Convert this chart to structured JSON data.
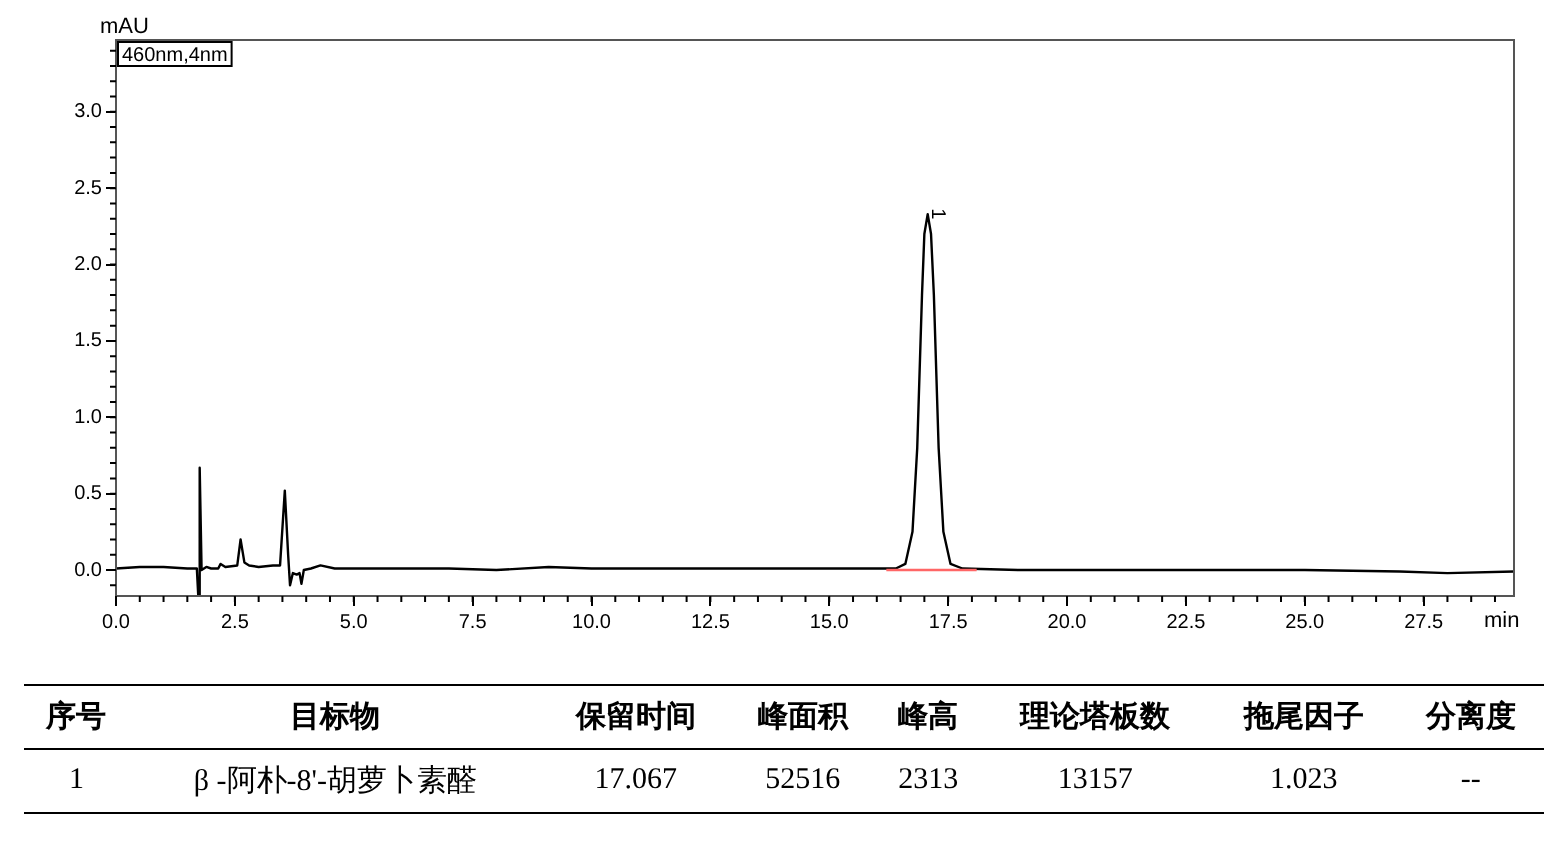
{
  "chart_data": {
    "type": "line",
    "xlabel": "min",
    "ylabel": "mAU",
    "xlim": [
      0,
      29.4
    ],
    "ylim": [
      -0.17,
      3.47
    ],
    "xticks": [
      {
        "value": 0,
        "label": "0.0"
      },
      {
        "value": 2.5,
        "label": "2.5"
      },
      {
        "value": 5,
        "label": "5.0"
      },
      {
        "value": 7.5,
        "label": "7.5"
      },
      {
        "value": 10,
        "label": "10.0"
      },
      {
        "value": 12.5,
        "label": "12.5"
      },
      {
        "value": 15,
        "label": "15.0"
      },
      {
        "value": 17.5,
        "label": "17.5"
      },
      {
        "value": 20,
        "label": "20.0"
      },
      {
        "value": 22.5,
        "label": "22.5"
      },
      {
        "value": 25,
        "label": "25.0"
      },
      {
        "value": 27.5,
        "label": "27.5"
      }
    ],
    "yticks": [
      {
        "value": 0,
        "label": "0.0"
      },
      {
        "value": 0.5,
        "label": "0.5"
      },
      {
        "value": 1,
        "label": "1.0"
      },
      {
        "value": 1.5,
        "label": "1.5"
      },
      {
        "value": 2,
        "label": "2.0"
      },
      {
        "value": 2.5,
        "label": "2.5"
      },
      {
        "value": 3,
        "label": "3.0"
      }
    ],
    "grid": false,
    "legend": false,
    "marker": "none",
    "line_style": "solid",
    "series": [
      {
        "color": "#000000",
        "x": [
          0,
          0.5,
          1.0,
          1.5,
          1.7,
          1.73,
          1.76,
          1.8,
          1.9,
          2.0,
          2.15,
          2.2,
          2.3,
          2.55,
          2.62,
          2.7,
          2.8,
          3.0,
          3.3,
          3.45,
          3.55,
          3.62,
          3.66,
          3.72,
          3.8,
          3.86,
          3.9,
          3.95,
          4.1,
          4.3,
          4.6,
          5,
          6,
          7,
          8,
          9.1,
          10,
          12,
          14,
          15,
          16,
          16.4,
          16.6,
          16.75,
          16.85,
          16.95,
          17.0,
          17.07,
          17.14,
          17.2,
          17.3,
          17.4,
          17.55,
          17.8,
          19,
          22,
          25,
          27,
          28,
          29.4
        ],
        "values": [
          0.01,
          0.02,
          0.02,
          0.01,
          0.01,
          -0.17,
          0.67,
          0.0,
          0.02,
          0.01,
          0.01,
          0.04,
          0.02,
          0.03,
          0.2,
          0.05,
          0.03,
          0.02,
          0.03,
          0.03,
          0.52,
          0.1,
          -0.1,
          -0.02,
          -0.03,
          -0.02,
          -0.09,
          0.0,
          0.01,
          0.03,
          0.01,
          0.01,
          0.01,
          0.01,
          0.0,
          0.02,
          0.01,
          0.01,
          0.01,
          0.01,
          0.01,
          0.01,
          0.04,
          0.25,
          0.8,
          1.8,
          2.2,
          2.33,
          2.2,
          1.8,
          0.8,
          0.25,
          0.04,
          0.01,
          0.0,
          0.0,
          0.0,
          -0.01,
          -0.02,
          -0.01
        ]
      },
      {
        "color": "#ff6666",
        "x": [
          16.2,
          18.1
        ],
        "values": [
          0,
          0
        ]
      }
    ],
    "annotations": [
      {
        "text": "1",
        "x": 17.07,
        "y": 2.33
      },
      "460nm,4nm",
      "序号",
      "目标物",
      "保留时间",
      "峰面积",
      "峰高",
      "理论塔板数",
      "拖尾因子",
      "分离度",
      "1",
      "β -阿朴-8'-胡萝卜素醛",
      "17.067",
      "52516",
      "2313",
      "13157",
      "1.023",
      "--"
    ]
  }
}
